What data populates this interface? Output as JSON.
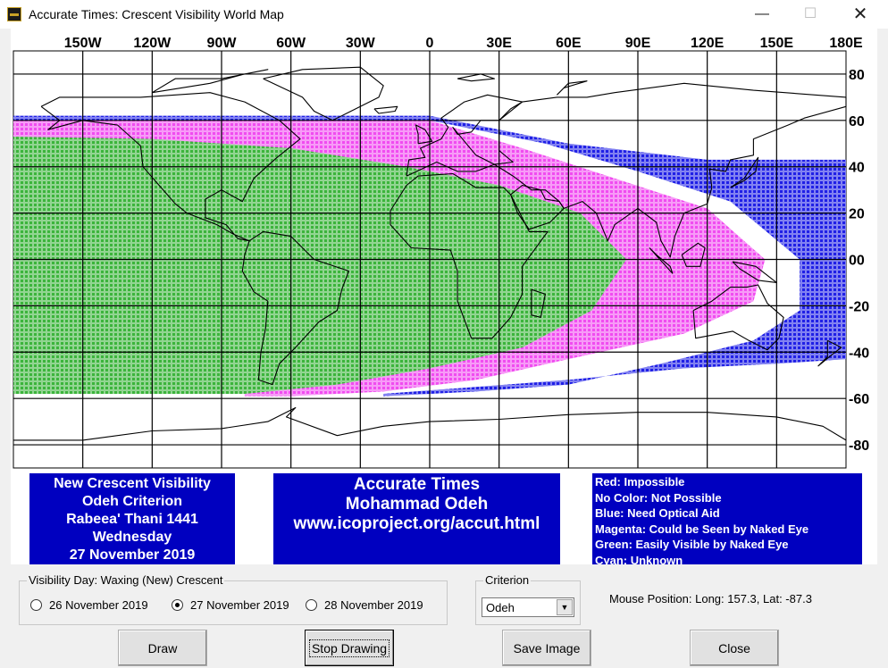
{
  "window": {
    "title": "Accurate Times: Crescent Visibility World Map",
    "controls": {
      "minimize": "—",
      "maximize": "☐",
      "close": "✕"
    }
  },
  "map": {
    "lon_labels": [
      "150W",
      "120W",
      "90W",
      "60W",
      "30W",
      "0",
      "30E",
      "60E",
      "90E",
      "120E",
      "150E",
      "180E"
    ],
    "lat_labels": [
      "80",
      "60",
      "40",
      "20",
      "00",
      "-20",
      "-40",
      "-60",
      "-80"
    ],
    "colors": {
      "green": "#3cb43c",
      "magenta": "#f04cf0",
      "blue": "#2020e6"
    }
  },
  "info_left": {
    "line1": "New Crescent Visibility",
    "line2": "Odeh Criterion",
    "line3": "Rabeea' Thani 1441",
    "line4": "Wednesday",
    "line5": "27 November 2019"
  },
  "info_mid": {
    "line1": "Accurate Times",
    "line2": "Mohammad Odeh",
    "line3": "www.icoproject.org/accut.html"
  },
  "legend": {
    "red": "Red: Impossible",
    "none": "No Color: Not Possible",
    "blue": "Blue: Need Optical Aid",
    "magenta": "Magenta: Could be Seen by Naked Eye",
    "green": "Green: Easily Visible by Naked Eye",
    "cyan": "Cyan: Unknown"
  },
  "visibility_day": {
    "label": "Visibility Day: Waxing (New) Crescent",
    "options": [
      "26 November 2019",
      "27 November 2019",
      "28 November 2019"
    ],
    "selected": "27 November 2019"
  },
  "criterion": {
    "label": "Criterion",
    "value": "Odeh"
  },
  "mouse_position": "Mouse Position: Long: 157.3, Lat: -87.3",
  "buttons": {
    "draw": "Draw",
    "stop": "Stop Drawing",
    "save": "Save Image",
    "close": "Close"
  }
}
